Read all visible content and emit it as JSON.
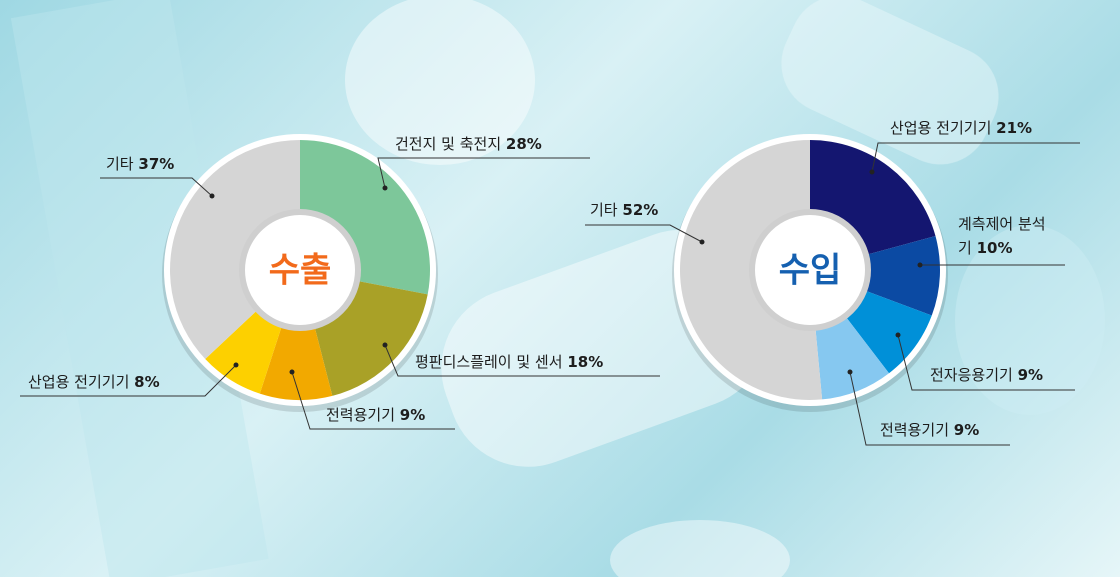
{
  "chart_data": [
    {
      "type": "pie",
      "title": "수출",
      "title_color": "#f26a1b",
      "categories": [
        "건전지 및 축전지",
        "평판디스플레이 및 센서",
        "전력용기기",
        "산업용 전기기기",
        "기타"
      ],
      "values": [
        28,
        18,
        9,
        8,
        37
      ],
      "value_labels": [
        "28%",
        "18%",
        "9%",
        "8%",
        "37%"
      ],
      "colors": [
        "#7dc79a",
        "#a9a127",
        "#f2a900",
        "#fdd000",
        "#d5d5d5"
      ]
    },
    {
      "type": "pie",
      "title": "수입",
      "title_color": "#1560b0",
      "categories": [
        "산업용 전기기기",
        "계측제어 분석기",
        "전자응용기기",
        "전력용기기",
        "기타"
      ],
      "values": [
        21,
        10,
        9,
        9,
        52
      ],
      "value_labels": [
        "21%",
        "10%",
        "9%",
        "9%",
        "52%"
      ],
      "colors": [
        "#141670",
        "#0b4aa3",
        "#0090d8",
        "#86c8f0",
        "#d5d5d5"
      ]
    }
  ]
}
